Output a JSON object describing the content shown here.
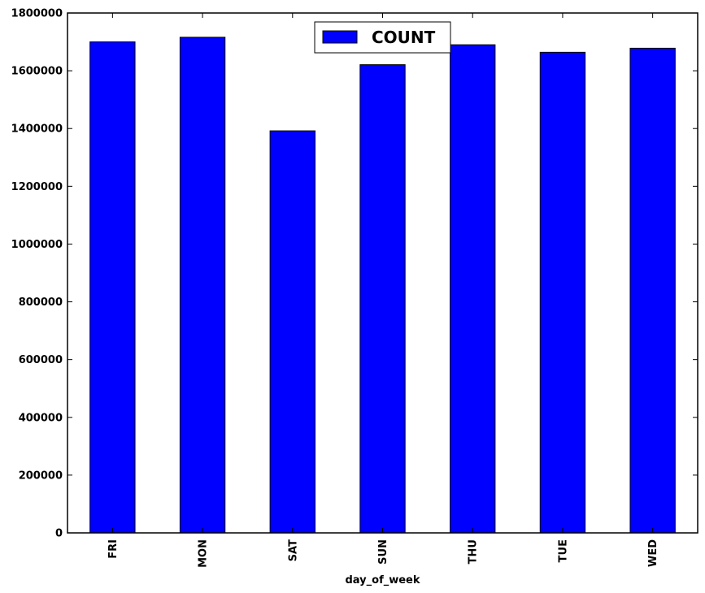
{
  "chart_data": {
    "type": "bar",
    "title": "",
    "xlabel": "day_of_week",
    "ylabel": "",
    "categories": [
      "FRI",
      "MON",
      "SAT",
      "SUN",
      "THU",
      "TUE",
      "WED"
    ],
    "series": [
      {
        "name": "COUNT",
        "values": [
          1700000,
          1716000,
          1392000,
          1621000,
          1690000,
          1664000,
          1678000
        ],
        "color": "#0000ff"
      }
    ],
    "ylim": [
      0,
      1800000
    ],
    "yticks": [
      0,
      200000,
      400000,
      600000,
      800000,
      1000000,
      1200000,
      1400000,
      1600000,
      1800000
    ],
    "ytick_labels": [
      "0",
      "200000",
      "400000",
      "600000",
      "800000",
      "1000000",
      "1200000",
      "1400000",
      "1600000",
      "1800000"
    ],
    "grid": false,
    "legend_position": "top-center"
  }
}
